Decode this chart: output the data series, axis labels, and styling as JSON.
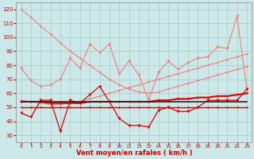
{
  "x": [
    0,
    1,
    2,
    3,
    4,
    5,
    6,
    7,
    8,
    9,
    10,
    11,
    12,
    13,
    14,
    15,
    16,
    17,
    18,
    19,
    20,
    21,
    22,
    23
  ],
  "series": [
    {
      "name": "rafales_descending",
      "color": "#f08080",
      "linewidth": 0.8,
      "markersize": 2.0,
      "values": [
        120,
        114,
        108,
        102,
        96,
        90,
        85,
        80,
        75,
        70,
        66,
        63,
        61,
        60,
        61,
        63,
        65,
        67,
        69,
        71,
        73,
        75,
        77,
        79
      ]
    },
    {
      "name": "rafales_ascending",
      "color": "#f08080",
      "linewidth": 0.8,
      "markersize": 2.0,
      "values": [
        55,
        54,
        53,
        52,
        52,
        53,
        54,
        56,
        58,
        60,
        62,
        64,
        66,
        68,
        70,
        72,
        74,
        76,
        78,
        80,
        82,
        84,
        86,
        88
      ]
    },
    {
      "name": "rafales_spiky",
      "color": "#f08080",
      "linewidth": 0.8,
      "markersize": 2.5,
      "values": [
        78,
        69,
        65,
        66,
        70,
        85,
        78,
        95,
        89,
        95,
        74,
        83,
        73,
        55,
        75,
        83,
        77,
        82,
        85,
        86,
        93,
        92,
        115,
        63
      ]
    },
    {
      "name": "vent_spiky",
      "color": "#dd0000",
      "linewidth": 0.9,
      "markersize": 2.5,
      "values": [
        46,
        43,
        55,
        55,
        33,
        55,
        53,
        59,
        65,
        54,
        42,
        37,
        37,
        36,
        48,
        50,
        47,
        47,
        50,
        55,
        55,
        55,
        55,
        63
      ]
    },
    {
      "name": "vent_smooth_high",
      "color": "#dd0000",
      "linewidth": 1.5,
      "markersize": 2.0,
      "values": [
        54,
        54,
        54,
        53,
        53,
        53,
        53,
        54,
        54,
        54,
        54,
        54,
        54,
        54,
        55,
        55,
        56,
        56,
        57,
        57,
        58,
        58,
        59,
        60
      ]
    },
    {
      "name": "vent_smooth_low",
      "color": "#dd0000",
      "linewidth": 1.0,
      "markersize": 1.5,
      "values": [
        50,
        50,
        50,
        50,
        50,
        50,
        50,
        50,
        50,
        50,
        50,
        50,
        50,
        50,
        50,
        50,
        50,
        50,
        50,
        50,
        50,
        50,
        50,
        50
      ]
    },
    {
      "name": "flat_dark",
      "color": "#222222",
      "linewidth": 1.2,
      "markersize": 0,
      "values": [
        54,
        54,
        54,
        54,
        54,
        54,
        54,
        54,
        54,
        54,
        54,
        54,
        54,
        54,
        54,
        54,
        54,
        54,
        54,
        54,
        54,
        54,
        54,
        54
      ]
    }
  ],
  "xlabel": "Vent moyen/en rafales ( km/h )",
  "ylim": [
    25,
    125
  ],
  "xlim": [
    -0.5,
    23.5
  ],
  "yticks": [
    30,
    40,
    50,
    60,
    70,
    80,
    90,
    100,
    110,
    120
  ],
  "xticks": [
    0,
    1,
    2,
    3,
    4,
    5,
    6,
    7,
    8,
    9,
    10,
    11,
    12,
    13,
    14,
    15,
    16,
    17,
    18,
    19,
    20,
    21,
    22,
    23
  ],
  "background_color": "#cce8e8",
  "grid_color": "#aacccc",
  "tick_color": "#cc0000",
  "label_color": "#cc0000"
}
